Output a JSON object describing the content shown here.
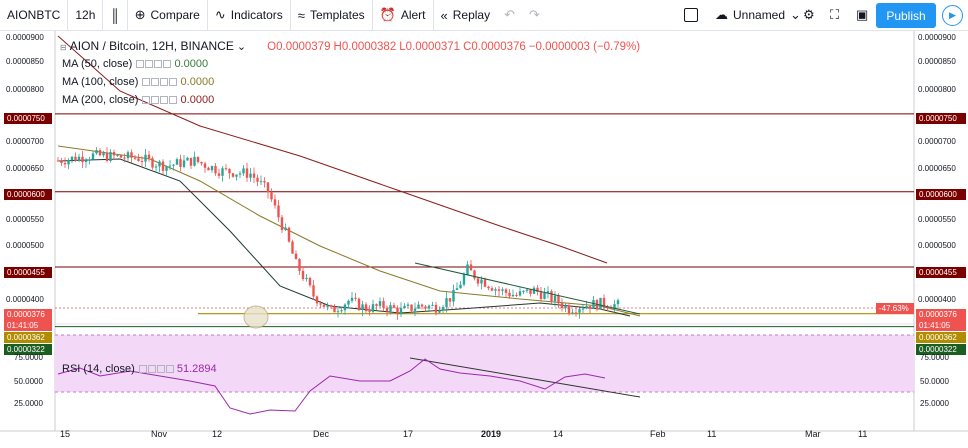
{
  "toolbar": {
    "symbol": "AIONBTC",
    "interval": "12h",
    "compare": "Compare",
    "indicators": "Indicators",
    "templates": "Templates",
    "alert": "Alert",
    "replay": "Replay",
    "layout_name": "Unnamed",
    "publish": "Publish"
  },
  "legend": {
    "title": "AION / Bitcoin, 12H, BINANCE",
    "o": "O0.0000379",
    "h": "H0.0000382",
    "l": "L0.0000371",
    "c": "C0.0000376",
    "change": "−0.0000003 (−0.79%)",
    "ma50": "MA (50, close)",
    "ma50_val": "0.0000",
    "ma100": "MA (100, close)",
    "ma100_val": "0.0000",
    "ma200": "MA (200, close)",
    "ma200_val": "0.0000",
    "rsi": "RSI (14, close)",
    "rsi_val": "51.2894"
  },
  "left_axis": [
    "0.0000900",
    "0.0000850",
    "0.0000800",
    "0.0000750",
    "0.0000700",
    "0.0000650",
    "0.0000600",
    "0.0000550",
    "0.0000500",
    "0.0000455",
    "0.0000400",
    "0.0000376",
    "01:41:05",
    "0.0000362",
    "0.0000322"
  ],
  "right_axis": [
    "0.0000900",
    "0.0000850",
    "0.0000800",
    "0.0000750",
    "0.0000700",
    "0.0000650",
    "0.0000600",
    "0.0000550",
    "0.0000500",
    "0.0000455",
    "0.0000400",
    "0.0000376",
    "01:41:05",
    "0.0000362",
    "0.0000322"
  ],
  "rsi_axis": [
    "75.0000",
    "50.0000",
    "25.0000"
  ],
  "price_badge": "-47.63%",
  "time_axis": [
    "15",
    "Nov",
    "12",
    "Dec",
    "17",
    "2019",
    "14",
    "Feb",
    "11",
    "Mar",
    "11"
  ],
  "colors": {
    "up": "#26a69a",
    "down": "#ef5350",
    "ma50": "#1e3a2f",
    "ma100": "#8a7a2a",
    "ma200": "#8b1c1c",
    "rsi": "#9c27b0",
    "level_dark_red": "#7a0000",
    "level_green": "#1b5e20",
    "level_gold": "#b08c00"
  }
}
